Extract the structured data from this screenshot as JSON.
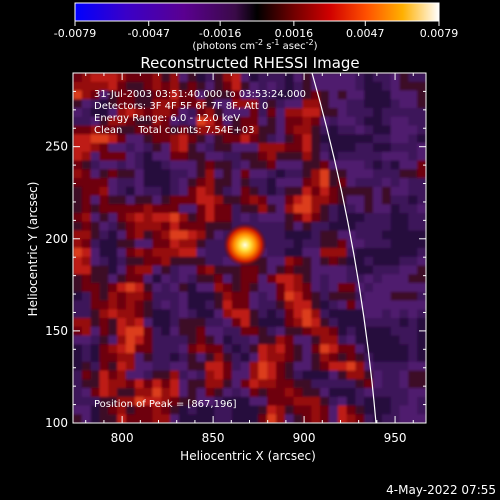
{
  "chart_data": {
    "type": "heatmap",
    "title": "Reconstructed RHESSI Image",
    "xlabel": "Heliocentric X (arcsec)",
    "ylabel": "Heliocentric Y (arcsec)",
    "xlim": [
      773,
      967
    ],
    "ylim": [
      100,
      290
    ],
    "x_ticks": [
      "800",
      "850",
      "900",
      "950"
    ],
    "x_tick_values": [
      800,
      850,
      900,
      950
    ],
    "y_ticks": [
      "100",
      "150",
      "200",
      "250"
    ],
    "y_tick_values": [
      100,
      150,
      200,
      250
    ],
    "colorbar": {
      "range": [
        -0.0079,
        0.0079
      ],
      "ticks": [
        "-0.0079",
        "-0.0047",
        "-0.0016",
        "0.0016",
        "0.0047",
        "0.0079"
      ],
      "tick_values": [
        -0.0079,
        -0.0047,
        -0.0016,
        0.0016,
        0.0047,
        0.0079
      ],
      "units_text": "(photons cm",
      "units_exp1": "-2",
      "units_mid": " s",
      "units_exp2": "-1",
      "units_mid2": " asec",
      "units_exp3": "-2",
      "units_end": ")",
      "colors": [
        "#0000ff",
        "#3a00c8",
        "#5a0090",
        "#4a0850",
        "#000000",
        "#700000",
        "#d00000",
        "#ff5000",
        "#ffb000",
        "#ffffff"
      ]
    },
    "annotations": [
      "31-Jul-2003 03:51:40.000 to 03:53:24.000",
      "Detectors: 3F 4F 5F 6F 7F 8F, Att 0",
      "Energy Range: 6.0 - 12.0 keV",
      "Clean     Total counts: 7.54E+03"
    ],
    "peak_label": "Position of Peak = [867,196]",
    "peak": {
      "x": 867,
      "y": 196
    },
    "limb_color": "#ffffff",
    "grid": false
  },
  "timestamp": "4-May-2022 07:55"
}
